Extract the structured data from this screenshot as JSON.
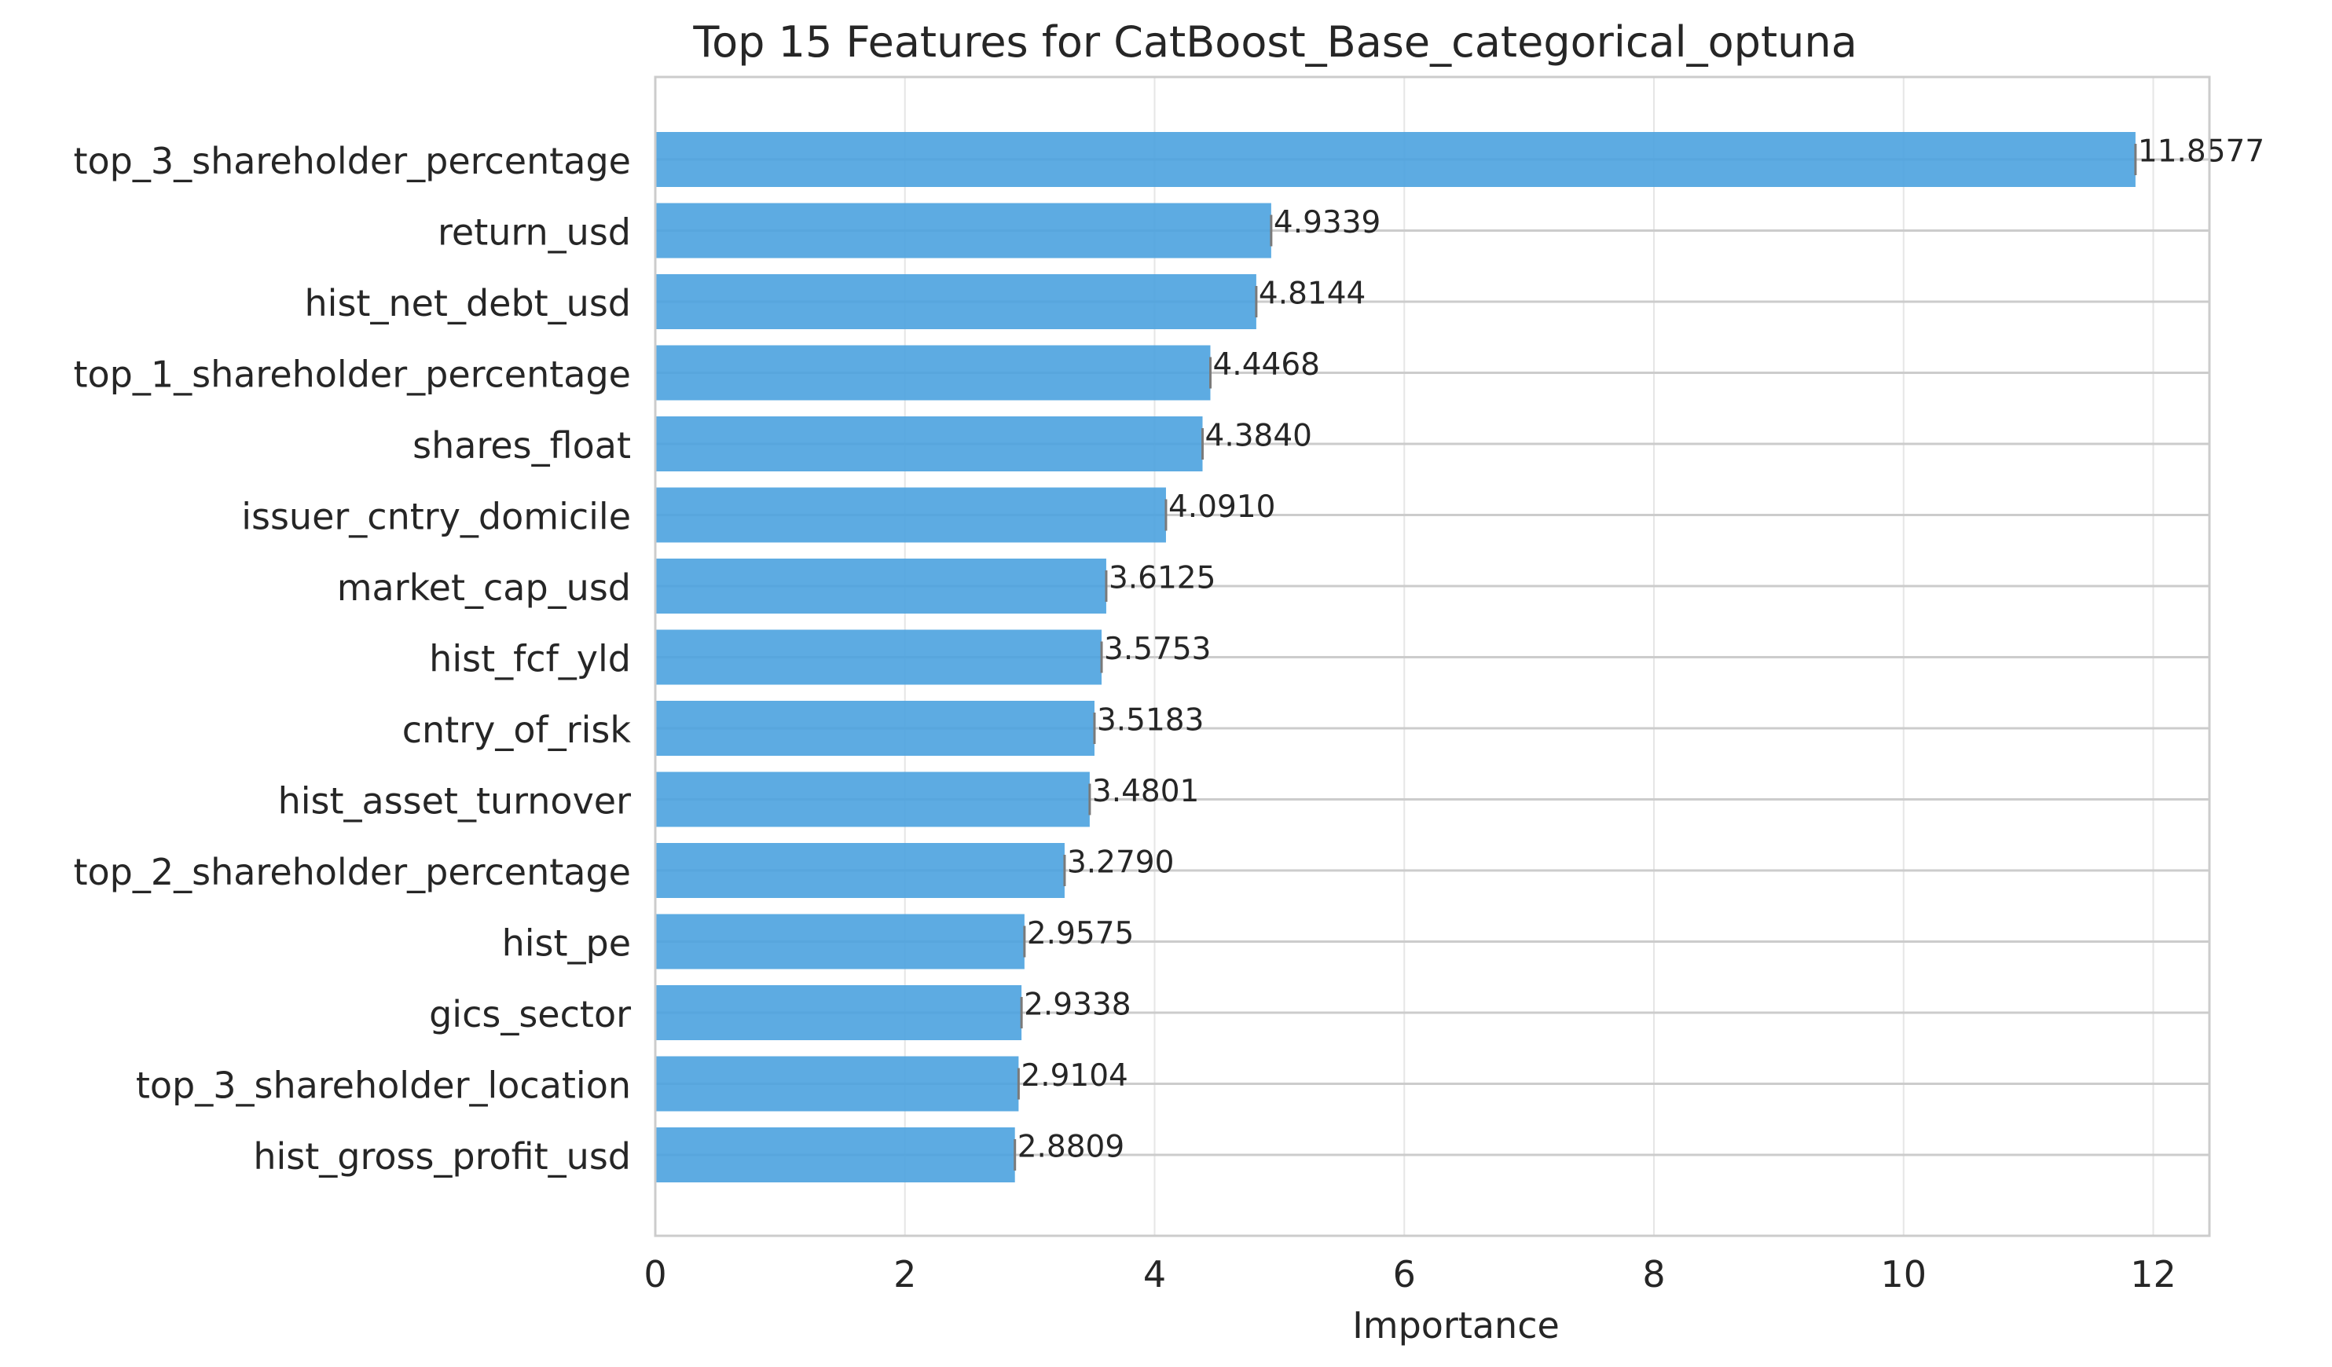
{
  "chart_data": {
    "type": "bar",
    "orientation": "horizontal",
    "title": "Top 15 Features for CatBoost_Base_categorical_optuna",
    "xlabel": "Importance",
    "ylabel": "",
    "xlim": [
      0,
      12.45
    ],
    "xticks": [
      0,
      2,
      4,
      6,
      8,
      10,
      12
    ],
    "grid": true,
    "bar_color": "#4ba2df",
    "categories": [
      "top_3_shareholder_percentage",
      "return_usd",
      "hist_net_debt_usd",
      "top_1_shareholder_percentage",
      "shares_float",
      "issuer_cntry_domicile",
      "market_cap_usd",
      "hist_fcf_yld",
      "cntry_of_risk",
      "hist_asset_turnover",
      "top_2_shareholder_percentage",
      "hist_pe",
      "gics_sector",
      "top_3_shareholder_location",
      "hist_gross_profit_usd"
    ],
    "values": [
      11.8577,
      4.9339,
      4.8144,
      4.4468,
      4.384,
      4.091,
      3.6125,
      3.5753,
      3.5183,
      3.4801,
      3.279,
      2.9575,
      2.9338,
      2.9104,
      2.8809
    ],
    "data_labels": [
      "11.8577",
      "4.9339",
      "4.8144",
      "4.4468",
      "4.3840",
      "4.0910",
      "3.6125",
      "3.5753",
      "3.5183",
      "3.4801",
      "3.2790",
      "2.9575",
      "2.9338",
      "2.9104",
      "2.8809"
    ]
  }
}
